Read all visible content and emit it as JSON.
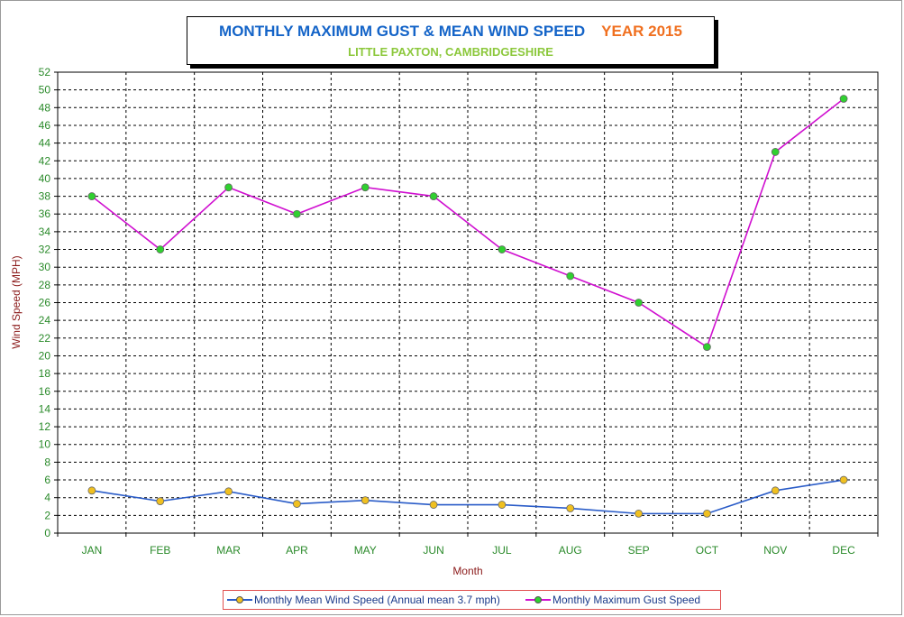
{
  "title": {
    "main": "MONTHLY MAXIMUM GUST & MEAN WIND SPEED",
    "year": "YEAR 2015",
    "subtitle": "LITTLE PAXTON, CAMBRIDGESHIRE"
  },
  "colors": {
    "title_main": "#1464c8",
    "title_year": "#f07020",
    "subtitle": "#8cc83c",
    "mean_line": "#2a5cc8",
    "mean_marker": "#f0c020",
    "gust_line": "#d010d0",
    "gust_marker": "#30d030",
    "tick_text": "#2a8a2a",
    "axis_label": "#8b1a1a",
    "legend_border": "#e05050"
  },
  "chart_data": {
    "type": "line",
    "xlabel": "Month",
    "ylabel": "Wind Speed (MPH)",
    "ylim": [
      0,
      52
    ],
    "yticks": [
      0,
      2,
      4,
      6,
      8,
      10,
      12,
      14,
      16,
      18,
      20,
      22,
      24,
      26,
      28,
      30,
      32,
      34,
      36,
      38,
      40,
      42,
      44,
      46,
      48,
      50,
      52
    ],
    "grid": true,
    "legend_position": "bottom",
    "categories": [
      "JAN",
      "FEB",
      "MAR",
      "APR",
      "MAY",
      "JUN",
      "JUL",
      "AUG",
      "SEP",
      "OCT",
      "NOV",
      "DEC"
    ],
    "series": [
      {
        "name": "Monthly Mean Wind Speed (Annual mean 3.7 mph)",
        "values": [
          4.8,
          3.6,
          4.7,
          3.3,
          3.7,
          3.2,
          3.2,
          2.8,
          2.2,
          2.2,
          4.8,
          6.0
        ]
      },
      {
        "name": "Monthly Maximum Gust Speed",
        "values": [
          38,
          32,
          39,
          36,
          39,
          38,
          32,
          29,
          26,
          21,
          43,
          49
        ]
      }
    ]
  }
}
